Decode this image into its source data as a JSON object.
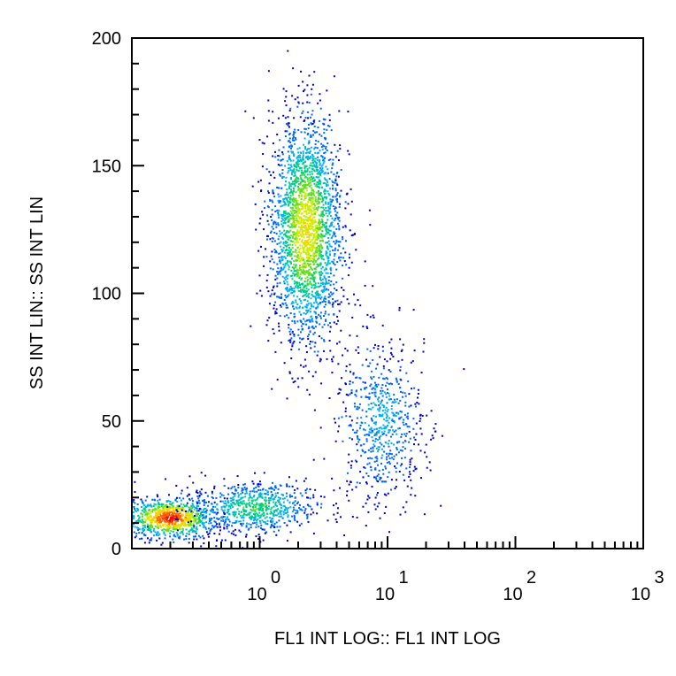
{
  "chart_data": {
    "type": "scatter",
    "style": "density-colored flow cytometry dot plot",
    "xlabel": "FL1 INT LOG:: FL1 INT LOG",
    "ylabel": "SS INT LIN:: SS INT LIN",
    "x_scale": "log",
    "xlim": [
      0.1,
      1000
    ],
    "ylim": [
      0,
      200
    ],
    "x_ticks": [
      {
        "base": "10",
        "exp": "0",
        "value": 1
      },
      {
        "base": "10",
        "exp": "1",
        "value": 10
      },
      {
        "base": "10",
        "exp": "2",
        "value": 100
      },
      {
        "base": "10",
        "exp": "3",
        "value": 1000
      }
    ],
    "y_ticks": [
      {
        "label": "0",
        "value": 0
      },
      {
        "label": "50",
        "value": 50
      },
      {
        "label": "100",
        "value": 100
      },
      {
        "label": "150",
        "value": 150
      },
      {
        "label": "200",
        "value": 200
      }
    ],
    "grid": false,
    "density_colors": [
      "#0000cc",
      "#0066ff",
      "#00b0f0",
      "#00cc88",
      "#66dd22",
      "#ccee00",
      "#ffcc00",
      "#ff6600",
      "#ee0000"
    ],
    "populations": [
      {
        "name": "",
        "center_x": 0.2,
        "center_y": 12,
        "spread_log_x": 0.18,
        "spread_y": 4,
        "points": 900,
        "peak_density": 1.0
      },
      {
        "name": "",
        "center_x": 0.9,
        "center_y": 16,
        "spread_log_x": 0.25,
        "spread_y": 5,
        "points": 700,
        "peak_density": 0.45
      },
      {
        "name": "",
        "center_x": 2.3,
        "center_y": 125,
        "spread_log_x": 0.14,
        "spread_y": 22,
        "points": 2400,
        "peak_density": 0.7
      },
      {
        "name": "",
        "center_x": 9,
        "center_y": 50,
        "spread_log_x": 0.17,
        "spread_y": 16,
        "points": 650,
        "peak_density": 0.25
      }
    ]
  }
}
